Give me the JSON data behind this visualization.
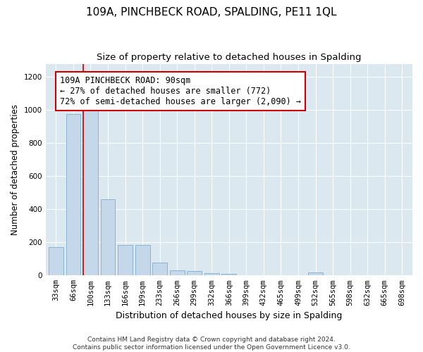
{
  "title1": "109A, PINCHBECK ROAD, SPALDING, PE11 1QL",
  "title2": "Size of property relative to detached houses in Spalding",
  "xlabel": "Distribution of detached houses by size in Spalding",
  "ylabel": "Number of detached properties",
  "categories": [
    "33sqm",
    "66sqm",
    "100sqm",
    "133sqm",
    "166sqm",
    "199sqm",
    "233sqm",
    "266sqm",
    "299sqm",
    "332sqm",
    "366sqm",
    "399sqm",
    "432sqm",
    "465sqm",
    "499sqm",
    "532sqm",
    "565sqm",
    "598sqm",
    "632sqm",
    "665sqm",
    "698sqm"
  ],
  "values": [
    170,
    975,
    1000,
    460,
    185,
    185,
    80,
    30,
    25,
    15,
    10,
    0,
    0,
    0,
    0,
    18,
    0,
    0,
    0,
    0,
    0
  ],
  "bar_color": "#c5d8ea",
  "bar_edge_color": "#8ab4d4",
  "property_line_color": "#cc0000",
  "annotation_text": "109A PINCHBECK ROAD: 90sqm\n← 27% of detached houses are smaller (772)\n72% of semi-detached houses are larger (2,090) →",
  "annotation_box_color": "#ffffff",
  "annotation_box_edge_color": "#cc0000",
  "ylim": [
    0,
    1280
  ],
  "yticks": [
    0,
    200,
    400,
    600,
    800,
    1000,
    1200
  ],
  "background_color": "#dce8f0",
  "footer_text": "Contains HM Land Registry data © Crown copyright and database right 2024.\nContains public sector information licensed under the Open Government Licence v3.0.",
  "title1_fontsize": 11,
  "title2_fontsize": 9.5,
  "xlabel_fontsize": 9,
  "ylabel_fontsize": 8.5,
  "tick_fontsize": 7.5,
  "annotation_fontsize": 8.5,
  "footer_fontsize": 6.5
}
